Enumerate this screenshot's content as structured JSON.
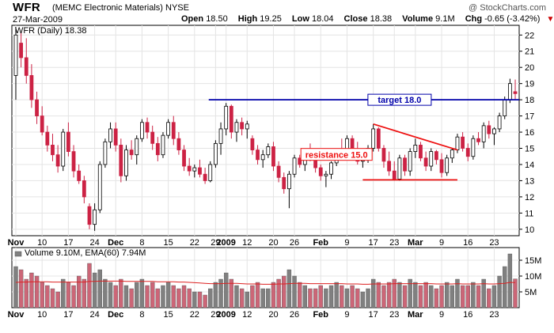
{
  "header": {
    "symbol": "WFR",
    "company": "(MEMC Electronic Materials)",
    "exchange": "NYSE",
    "date": "27-Mar-2009",
    "copyright": "@ StockCharts.com",
    "open_label": "Open",
    "open_value": "18.50",
    "high_label": "High",
    "high_value": "19.25",
    "low_label": "Low",
    "low_value": "18.04",
    "close_label": "Close",
    "close_value": "18.38",
    "volume_label": "Volume",
    "volume_value": "9.1M",
    "chg_label": "Chg",
    "chg_value": "-0.65 (-3.42%)",
    "chg_arrow": "▼"
  },
  "price_legend": "WFR (Daily) 18.38",
  "volume_legend": "Volume 9.10M, EMA(60) 7.94M",
  "annotations": {
    "target_label": "target 18.0",
    "resistance_label": "resistance 15.0"
  },
  "colors": {
    "up": "#ffffff",
    "down": "#cc2244",
    "target_line": "#0000aa",
    "resistance_line": "#ee1111",
    "vol_up": "#808080",
    "vol_down": "#cc6677",
    "ema": "#dd2222"
  },
  "chart_data": {
    "type": "candlestick",
    "x_tick_labels": [
      "Nov",
      "10",
      "17",
      "24",
      "Dec",
      "8",
      "15",
      "22",
      "29",
      "2009",
      "12",
      "20",
      "26",
      "Feb",
      "9",
      "17",
      "23",
      "Mar",
      "9",
      "16",
      "23"
    ],
    "x_tick_index": [
      0,
      5,
      10,
      15,
      19,
      24,
      29,
      34,
      38,
      40,
      44,
      49,
      53,
      58,
      63,
      68,
      72,
      76,
      81,
      86,
      91
    ],
    "bold_ticks": [
      "Nov",
      "Dec",
      "2009",
      "Feb",
      "Mar"
    ],
    "y_ticks": [
      10,
      11,
      12,
      13,
      14,
      15,
      16,
      17,
      18,
      19,
      20,
      21,
      22
    ],
    "ylim": [
      9.6,
      22.6
    ],
    "vol_ticks": [
      {
        "v": 5,
        "label": "5M"
      },
      {
        "v": 10,
        "label": "10M"
      },
      {
        "v": 15,
        "label": "15M"
      }
    ],
    "vol_ylim": [
      0,
      19
    ],
    "target_level": 18.0,
    "resistance_trend": {
      "start": {
        "i": 68,
        "y": 16.5
      },
      "end": {
        "i": 84,
        "y": 14.9
      }
    },
    "support_level": {
      "y": 13.05,
      "from_i": 66,
      "to_i": 84
    },
    "ohlc": [
      {
        "o": 19.5,
        "h": 22.5,
        "l": 18.0,
        "c": 22.0,
        "v": 13
      },
      {
        "o": 21.5,
        "h": 22.2,
        "l": 20.0,
        "c": 20.6,
        "v": 12
      },
      {
        "o": 20.6,
        "h": 21.8,
        "l": 19.0,
        "c": 19.5,
        "v": 9
      },
      {
        "o": 19.5,
        "h": 20.2,
        "l": 17.5,
        "c": 18.0,
        "v": 11
      },
      {
        "o": 18.0,
        "h": 18.5,
        "l": 16.5,
        "c": 17.0,
        "v": 10
      },
      {
        "o": 17.0,
        "h": 17.6,
        "l": 15.8,
        "c": 16.0,
        "v": 8
      },
      {
        "o": 16.0,
        "h": 16.4,
        "l": 14.8,
        "c": 15.2,
        "v": 7
      },
      {
        "o": 15.2,
        "h": 15.9,
        "l": 14.2,
        "c": 14.6,
        "v": 6
      },
      {
        "o": 14.6,
        "h": 15.2,
        "l": 13.5,
        "c": 13.9,
        "v": 5
      },
      {
        "o": 13.9,
        "h": 16.2,
        "l": 13.6,
        "c": 16.0,
        "v": 9
      },
      {
        "o": 16.0,
        "h": 16.6,
        "l": 14.5,
        "c": 14.8,
        "v": 8
      },
      {
        "o": 14.8,
        "h": 15.2,
        "l": 13.2,
        "c": 13.6,
        "v": 7
      },
      {
        "o": 13.6,
        "h": 14.0,
        "l": 12.8,
        "c": 13.0,
        "v": 10
      },
      {
        "o": 13.0,
        "h": 13.3,
        "l": 11.6,
        "c": 12.0,
        "v": 9
      },
      {
        "o": 11.4,
        "h": 11.6,
        "l": 10.0,
        "c": 10.3,
        "v": 14
      },
      {
        "o": 10.3,
        "h": 11.6,
        "l": 9.9,
        "c": 11.2,
        "v": 11
      },
      {
        "o": 11.2,
        "h": 14.2,
        "l": 11.0,
        "c": 14.0,
        "v": 12
      },
      {
        "o": 14.0,
        "h": 15.6,
        "l": 13.8,
        "c": 15.4,
        "v": 9
      },
      {
        "o": 15.4,
        "h": 16.6,
        "l": 15.0,
        "c": 16.2,
        "v": 8
      },
      {
        "o": 16.2,
        "h": 16.6,
        "l": 14.8,
        "c": 15.2,
        "v": 7
      },
      {
        "o": 15.2,
        "h": 15.6,
        "l": 12.9,
        "c": 13.3,
        "v": 9
      },
      {
        "o": 13.3,
        "h": 15.2,
        "l": 13.0,
        "c": 14.9,
        "v": 7
      },
      {
        "o": 14.9,
        "h": 15.5,
        "l": 14.3,
        "c": 14.6,
        "v": 6
      },
      {
        "o": 14.6,
        "h": 15.8,
        "l": 14.0,
        "c": 15.6,
        "v": 8
      },
      {
        "o": 15.6,
        "h": 16.8,
        "l": 15.4,
        "c": 16.6,
        "v": 9
      },
      {
        "o": 16.6,
        "h": 16.9,
        "l": 15.6,
        "c": 16.0,
        "v": 7
      },
      {
        "o": 16.0,
        "h": 16.4,
        "l": 14.9,
        "c": 15.3,
        "v": 8
      },
      {
        "o": 15.3,
        "h": 15.7,
        "l": 14.2,
        "c": 14.6,
        "v": 6
      },
      {
        "o": 14.6,
        "h": 16.0,
        "l": 14.4,
        "c": 15.8,
        "v": 7
      },
      {
        "o": 15.8,
        "h": 16.8,
        "l": 15.6,
        "c": 16.6,
        "v": 8
      },
      {
        "o": 16.6,
        "h": 17.0,
        "l": 15.2,
        "c": 15.6,
        "v": 7
      },
      {
        "o": 15.6,
        "h": 16.0,
        "l": 14.6,
        "c": 14.9,
        "v": 6
      },
      {
        "o": 14.9,
        "h": 15.2,
        "l": 13.6,
        "c": 13.9,
        "v": 7
      },
      {
        "o": 13.9,
        "h": 14.4,
        "l": 13.3,
        "c": 13.6,
        "v": 6
      },
      {
        "o": 13.6,
        "h": 14.0,
        "l": 13.2,
        "c": 13.8,
        "v": 5
      },
      {
        "o": 13.8,
        "h": 14.3,
        "l": 13.2,
        "c": 13.4,
        "v": 5
      },
      {
        "o": 13.4,
        "h": 13.8,
        "l": 12.8,
        "c": 13.0,
        "v": 4
      },
      {
        "o": 13.0,
        "h": 14.2,
        "l": 12.9,
        "c": 14.0,
        "v": 6
      },
      {
        "o": 14.0,
        "h": 15.5,
        "l": 13.8,
        "c": 15.3,
        "v": 8
      },
      {
        "o": 15.3,
        "h": 16.6,
        "l": 14.6,
        "c": 16.2,
        "v": 9
      },
      {
        "o": 16.2,
        "h": 17.8,
        "l": 15.8,
        "c": 17.6,
        "v": 11
      },
      {
        "o": 17.6,
        "h": 17.7,
        "l": 15.6,
        "c": 16.0,
        "v": 9
      },
      {
        "o": 16.0,
        "h": 16.8,
        "l": 15.4,
        "c": 16.6,
        "v": 7
      },
      {
        "o": 16.6,
        "h": 16.9,
        "l": 15.8,
        "c": 16.2,
        "v": 6
      },
      {
        "o": 16.2,
        "h": 16.7,
        "l": 15.6,
        "c": 16.5,
        "v": 5
      },
      {
        "o": 15.6,
        "h": 15.8,
        "l": 14.6,
        "c": 14.9,
        "v": 7
      },
      {
        "o": 14.9,
        "h": 15.2,
        "l": 14.0,
        "c": 14.3,
        "v": 8
      },
      {
        "o": 14.3,
        "h": 14.9,
        "l": 13.8,
        "c": 14.6,
        "v": 6
      },
      {
        "o": 14.6,
        "h": 15.3,
        "l": 14.4,
        "c": 15.1,
        "v": 6
      },
      {
        "o": 15.1,
        "h": 15.4,
        "l": 13.6,
        "c": 13.9,
        "v": 8
      },
      {
        "o": 13.9,
        "h": 14.2,
        "l": 12.9,
        "c": 13.2,
        "v": 9
      },
      {
        "o": 13.2,
        "h": 13.5,
        "l": 12.2,
        "c": 12.5,
        "v": 10
      },
      {
        "o": 12.5,
        "h": 13.6,
        "l": 11.3,
        "c": 13.4,
        "v": 12
      },
      {
        "o": 13.4,
        "h": 14.6,
        "l": 13.2,
        "c": 14.4,
        "v": 10
      },
      {
        "o": 14.4,
        "h": 14.6,
        "l": 13.8,
        "c": 14.0,
        "v": 8
      },
      {
        "o": 14.0,
        "h": 15.0,
        "l": 13.6,
        "c": 14.8,
        "v": 7
      },
      {
        "o": 14.8,
        "h": 15.3,
        "l": 14.2,
        "c": 14.4,
        "v": 6
      },
      {
        "o": 14.4,
        "h": 14.6,
        "l": 13.5,
        "c": 13.8,
        "v": 6
      },
      {
        "o": 13.8,
        "h": 14.0,
        "l": 13.0,
        "c": 13.3,
        "v": 7
      },
      {
        "o": 13.3,
        "h": 13.6,
        "l": 12.6,
        "c": 13.4,
        "v": 6
      },
      {
        "o": 13.4,
        "h": 14.2,
        "l": 13.1,
        "c": 14.1,
        "v": 7
      },
      {
        "o": 14.1,
        "h": 15.0,
        "l": 13.9,
        "c": 14.9,
        "v": 8
      },
      {
        "o": 14.9,
        "h": 15.6,
        "l": 14.4,
        "c": 14.8,
        "v": 7
      },
      {
        "o": 14.8,
        "h": 15.8,
        "l": 14.6,
        "c": 15.6,
        "v": 6
      },
      {
        "o": 15.6,
        "h": 15.8,
        "l": 14.4,
        "c": 14.6,
        "v": 7
      },
      {
        "o": 14.6,
        "h": 15.4,
        "l": 14.0,
        "c": 14.2,
        "v": 6
      },
      {
        "o": 14.2,
        "h": 14.6,
        "l": 13.8,
        "c": 14.4,
        "v": 5
      },
      {
        "o": 14.4,
        "h": 15.2,
        "l": 14.1,
        "c": 15.0,
        "v": 6
      },
      {
        "o": 15.0,
        "h": 16.5,
        "l": 14.8,
        "c": 16.2,
        "v": 9
      },
      {
        "o": 16.2,
        "h": 16.3,
        "l": 14.8,
        "c": 15.0,
        "v": 8
      },
      {
        "o": 15.0,
        "h": 15.2,
        "l": 13.8,
        "c": 14.2,
        "v": 7
      },
      {
        "o": 14.2,
        "h": 14.8,
        "l": 13.3,
        "c": 13.6,
        "v": 8
      },
      {
        "o": 13.6,
        "h": 14.2,
        "l": 13.0,
        "c": 13.1,
        "v": 9
      },
      {
        "o": 13.1,
        "h": 14.6,
        "l": 13.0,
        "c": 14.4,
        "v": 8
      },
      {
        "o": 14.4,
        "h": 14.6,
        "l": 13.3,
        "c": 13.6,
        "v": 7
      },
      {
        "o": 13.6,
        "h": 15.0,
        "l": 13.3,
        "c": 14.8,
        "v": 9
      },
      {
        "o": 14.8,
        "h": 15.6,
        "l": 14.4,
        "c": 15.2,
        "v": 8
      },
      {
        "o": 15.2,
        "h": 15.4,
        "l": 14.2,
        "c": 14.4,
        "v": 7
      },
      {
        "o": 14.4,
        "h": 14.8,
        "l": 13.6,
        "c": 13.9,
        "v": 8
      },
      {
        "o": 13.9,
        "h": 15.0,
        "l": 13.6,
        "c": 14.8,
        "v": 7
      },
      {
        "o": 14.8,
        "h": 14.9,
        "l": 14.0,
        "c": 14.3,
        "v": 6
      },
      {
        "o": 14.3,
        "h": 14.7,
        "l": 13.2,
        "c": 13.5,
        "v": 7
      },
      {
        "o": 13.5,
        "h": 14.6,
        "l": 13.3,
        "c": 14.4,
        "v": 8
      },
      {
        "o": 14.4,
        "h": 15.0,
        "l": 14.1,
        "c": 14.9,
        "v": 7
      },
      {
        "o": 14.9,
        "h": 15.9,
        "l": 14.7,
        "c": 15.7,
        "v": 9
      },
      {
        "o": 15.7,
        "h": 16.0,
        "l": 14.8,
        "c": 15.0,
        "v": 7
      },
      {
        "o": 15.0,
        "h": 15.3,
        "l": 14.2,
        "c": 14.5,
        "v": 7
      },
      {
        "o": 14.5,
        "h": 15.8,
        "l": 14.3,
        "c": 15.6,
        "v": 8
      },
      {
        "o": 15.6,
        "h": 16.0,
        "l": 15.2,
        "c": 15.4,
        "v": 7
      },
      {
        "o": 15.4,
        "h": 16.6,
        "l": 15.0,
        "c": 16.4,
        "v": 9
      },
      {
        "o": 16.4,
        "h": 16.7,
        "l": 15.6,
        "c": 15.9,
        "v": 6
      },
      {
        "o": 15.9,
        "h": 16.3,
        "l": 15.2,
        "c": 16.2,
        "v": 7
      },
      {
        "o": 16.2,
        "h": 17.2,
        "l": 16.0,
        "c": 17.0,
        "v": 10
      },
      {
        "o": 17.0,
        "h": 18.2,
        "l": 16.8,
        "c": 18.0,
        "v": 13
      },
      {
        "o": 18.0,
        "h": 19.3,
        "l": 17.8,
        "c": 19.0,
        "v": 17
      },
      {
        "o": 18.5,
        "h": 19.25,
        "l": 18.04,
        "c": 18.38,
        "v": 9.1
      }
    ],
    "ema60": [
      8.0,
      8.1,
      8.1,
      8.2,
      8.2,
      8.2,
      8.2,
      8.1,
      8.1,
      8.1,
      8.1,
      8.1,
      8.1,
      8.1,
      8.3,
      8.3,
      8.4,
      8.4,
      8.4,
      8.4,
      8.4,
      8.3,
      8.3,
      8.3,
      8.3,
      8.3,
      8.3,
      8.2,
      8.2,
      8.2,
      8.2,
      8.1,
      8.1,
      8.0,
      7.9,
      7.8,
      7.7,
      7.6,
      7.6,
      7.6,
      7.7,
      7.7,
      7.7,
      7.6,
      7.5,
      7.5,
      7.5,
      7.4,
      7.4,
      7.4,
      7.5,
      7.5,
      7.6,
      7.7,
      7.7,
      7.7,
      7.6,
      7.6,
      7.6,
      7.6,
      7.6,
      7.6,
      7.6,
      7.5,
      7.5,
      7.5,
      7.4,
      7.4,
      7.5,
      7.5,
      7.5,
      7.5,
      7.6,
      7.6,
      7.6,
      7.6,
      7.6,
      7.6,
      7.6,
      7.6,
      7.5,
      7.5,
      7.5,
      7.5,
      7.6,
      7.5,
      7.5,
      7.5,
      7.5,
      7.6,
      7.5,
      7.5,
      7.6,
      7.7,
      8.0,
      7.94
    ]
  }
}
